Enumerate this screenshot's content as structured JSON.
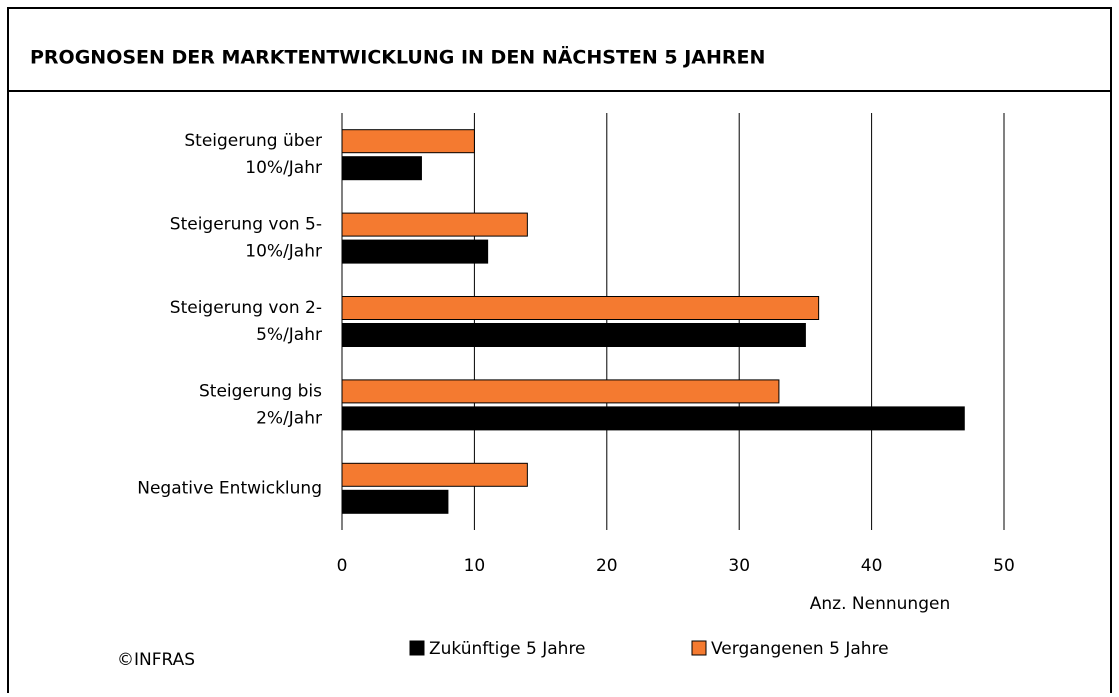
{
  "chart_data": {
    "type": "bar",
    "orientation": "horizontal",
    "title": "PROGNOSEN DER MARKTENTWICKLUNG IN DEN NÄCHSTEN 5 JAHREN",
    "categories": [
      [
        "Steigerung über",
        "10%/Jahr"
      ],
      [
        "Steigerung von 5-",
        "10%/Jahr"
      ],
      [
        "Steigerung von 2-",
        "5%/Jahr"
      ],
      [
        "Steigerung bis",
        "2%/Jahr"
      ],
      [
        "Negative Entwicklung"
      ]
    ],
    "series": [
      {
        "name": "Zukünftige 5 Jahre",
        "color": "#000000",
        "values": [
          6,
          11,
          35,
          47,
          8
        ]
      },
      {
        "name": "Vergangenen 5 Jahre",
        "color": "#f47a30",
        "values": [
          10,
          14,
          36,
          33,
          14
        ]
      }
    ],
    "xlim": [
      0,
      50
    ],
    "xticks": [
      0,
      10,
      20,
      30,
      40,
      50
    ],
    "grid": true,
    "xlabel": "Anz. Nennungen",
    "legend": "bottom",
    "source": "©INFRAS"
  }
}
